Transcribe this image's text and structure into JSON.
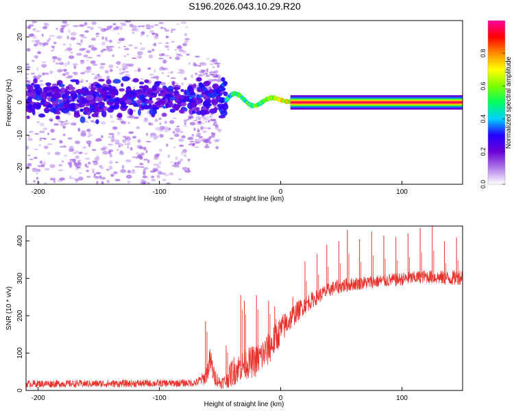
{
  "figure_title": "S196.2026.043.10.29.R20",
  "chart_data": [
    {
      "type": "heatmap",
      "name": "spectrogram",
      "xlabel": "Height of straight line (km)",
      "ylabel": "Frequency (Hz)",
      "xlim": [
        -210,
        150
      ],
      "ylim": [
        -25,
        25
      ],
      "xticks": [
        -200,
        -100,
        0,
        100
      ],
      "xtick_labels": [
        "-200",
        "-100",
        "0",
        "100"
      ],
      "yticks": [
        -20,
        -10,
        0,
        10,
        20
      ],
      "ytick_labels": [
        "-20",
        "-10",
        "0",
        "10",
        "20"
      ],
      "colorbar": {
        "label": "Normalized spectral amplitude",
        "range": [
          0.0,
          1.0
        ],
        "ticks": [
          0.0,
          0.2,
          0.4,
          0.6,
          0.8
        ],
        "tick_labels": [
          "0.0",
          "0.2",
          "0.4",
          "0.6",
          "0.8"
        ],
        "colors": [
          "#ffffff",
          "#b07be8",
          "#6a00d6",
          "#2200ff",
          "#00d0ff",
          "#00ff60",
          "#7cff00",
          "#ffff00",
          "#ff8c00",
          "#ff0000",
          "#ff00a0"
        ]
      },
      "description_features": [
        {
          "region": "x < -70 km",
          "feature": "scattered speckle noise, mostly -25 to 25 Hz, strongest band near 0 Hz"
        },
        {
          "region": "-70 to -40 km",
          "feature": "cluster of bright spots near 0 to 5 Hz"
        },
        {
          "region": "-40 to 10 km",
          "feature": "wavy narrowband trace converging to 0 Hz"
        },
        {
          "region": "x > 10 km",
          "feature": "saturated narrow line at 0 Hz (amplitude ~1.0)"
        }
      ]
    },
    {
      "type": "line",
      "name": "snr",
      "xlabel": "Height of straight line (km)",
      "ylabel": "SNR (10 * v/v)",
      "xlim": [
        -210,
        150
      ],
      "ylim": [
        0,
        440
      ],
      "xticks": [
        -200,
        -100,
        0,
        100
      ],
      "xtick_labels": [
        "-200",
        "-100",
        "0",
        "100"
      ],
      "yticks": [
        0,
        100,
        200,
        300,
        400
      ],
      "ytick_labels": [
        "0",
        "100",
        "200",
        "300",
        "400"
      ],
      "line_color": "#e8302a",
      "envelope": {
        "x": [
          -210,
          -150,
          -100,
          -70,
          -62,
          -58,
          -55,
          -50,
          -45,
          -40,
          -30,
          -20,
          -10,
          0,
          10,
          20,
          30,
          40,
          50,
          60,
          80,
          100,
          120,
          140,
          150
        ],
        "base": [
          18,
          18,
          19,
          20,
          35,
          80,
          40,
          20,
          25,
          50,
          70,
          80,
          110,
          160,
          200,
          230,
          250,
          270,
          280,
          285,
          292,
          298,
          305,
          300,
          305
        ],
        "noise": [
          10,
          10,
          10,
          10,
          20,
          40,
          25,
          15,
          20,
          40,
          40,
          45,
          45,
          40,
          30,
          25,
          20,
          20,
          20,
          18,
          18,
          18,
          18,
          20,
          22
        ]
      },
      "spikes": [
        {
          "x": -62,
          "y": 185
        },
        {
          "x": -45,
          "y": 120
        },
        {
          "x": -33,
          "y": 255
        },
        {
          "x": -30,
          "y": 240
        },
        {
          "x": -20,
          "y": 255
        },
        {
          "x": -10,
          "y": 240
        },
        {
          "x": -5,
          "y": 225
        },
        {
          "x": 10,
          "y": 250
        },
        {
          "x": 20,
          "y": 345
        },
        {
          "x": 30,
          "y": 365
        },
        {
          "x": 38,
          "y": 390
        },
        {
          "x": 48,
          "y": 400
        },
        {
          "x": 55,
          "y": 430
        },
        {
          "x": 65,
          "y": 405
        },
        {
          "x": 75,
          "y": 425
        },
        {
          "x": 85,
          "y": 415
        },
        {
          "x": 95,
          "y": 410
        },
        {
          "x": 105,
          "y": 420
        },
        {
          "x": 115,
          "y": 435
        },
        {
          "x": 125,
          "y": 440
        },
        {
          "x": 135,
          "y": 400
        },
        {
          "x": 145,
          "y": 410
        }
      ]
    }
  ]
}
